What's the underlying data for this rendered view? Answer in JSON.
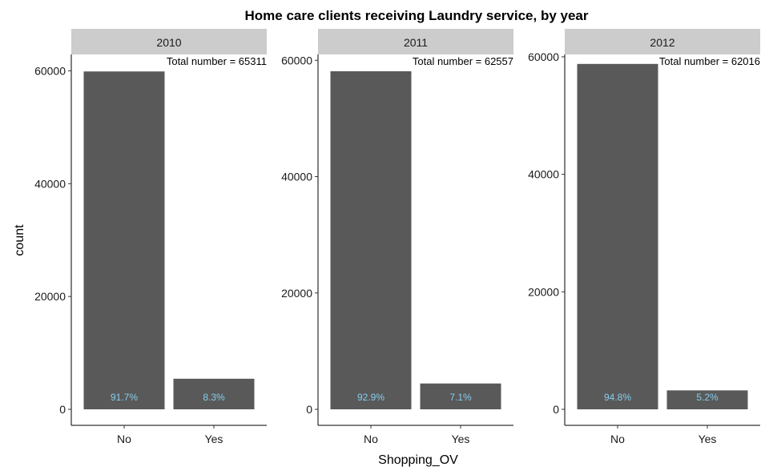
{
  "chart_data": {
    "type": "bar",
    "title": "Home care clients receiving Laundry service, by year",
    "xlabel": "Shopping_OV",
    "ylabel": "count",
    "categories": [
      "No",
      "Yes"
    ],
    "bar_color": "#595959",
    "label_color": "#87CEEB",
    "strip_color": "#cccccc",
    "grid": false,
    "panels": [
      {
        "facet": "2010",
        "total_label": "Total number = 65311",
        "values": [
          59890,
          5421
        ],
        "percent_labels": [
          "91.7%",
          "8.3%"
        ],
        "ylim": [
          0,
          62900
        ],
        "yticks": [
          0,
          20000,
          40000,
          60000
        ],
        "ytick_labels": [
          "0",
          "20000",
          "40000",
          "60000"
        ]
      },
      {
        "facet": "2011",
        "total_label": "Total number = 62557",
        "values": [
          58115,
          4442
        ],
        "percent_labels": [
          "92.9%",
          "7.1%"
        ],
        "ylim": [
          0,
          61000
        ],
        "yticks": [
          0,
          20000,
          40000,
          60000
        ],
        "ytick_labels": [
          "0",
          "20000",
          "40000",
          "60000"
        ]
      },
      {
        "facet": "2012",
        "total_label": "Total number = 62016",
        "values": [
          58791,
          3225
        ],
        "percent_labels": [
          "94.8%",
          "5.2%"
        ],
        "ylim": [
          0,
          60400
        ],
        "yticks": [
          0,
          20000,
          40000,
          60000
        ],
        "ytick_labels": [
          "0",
          "20000",
          "40000",
          "60000"
        ]
      }
    ]
  }
}
